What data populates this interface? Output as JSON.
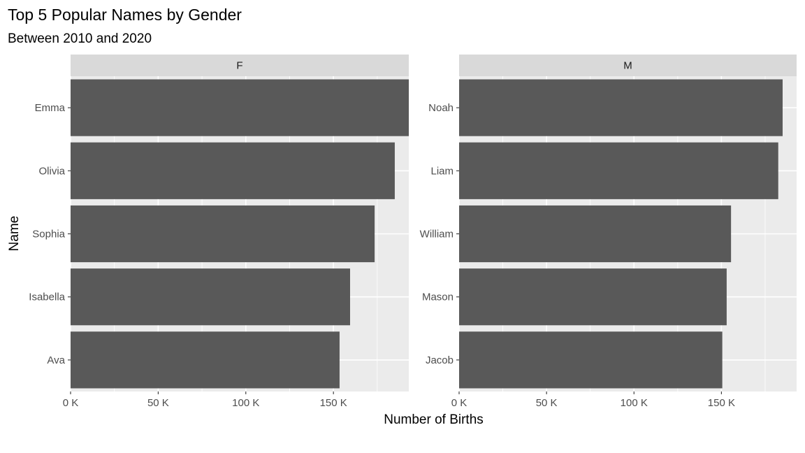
{
  "chart_data": {
    "type": "bar",
    "orientation": "horizontal",
    "title": "Top 5 Popular Names by Gender",
    "subtitle": "Between 2010 and 2020",
    "xlabel": "Number of Births",
    "ylabel": "Name",
    "xlim": [
      0,
      193000
    ],
    "x_ticks": [
      0,
      50000,
      100000,
      150000
    ],
    "x_tick_labels": [
      "0 K",
      "50 K",
      "100 K",
      "150 K"
    ],
    "grid": true,
    "bar_color": "#595959",
    "panel_background": "#ebebeb",
    "strip_background": "#d9d9d9",
    "facets": [
      {
        "label": "F",
        "categories": [
          "Emma",
          "Olivia",
          "Sophia",
          "Isabella",
          "Ava"
        ],
        "values": [
          193000,
          185000,
          173500,
          159500,
          153500
        ]
      },
      {
        "label": "M",
        "categories": [
          "Noah",
          "Liam",
          "William",
          "Mason",
          "Jacob"
        ],
        "values": [
          185000,
          182500,
          155500,
          153000,
          150500
        ]
      }
    ]
  }
}
